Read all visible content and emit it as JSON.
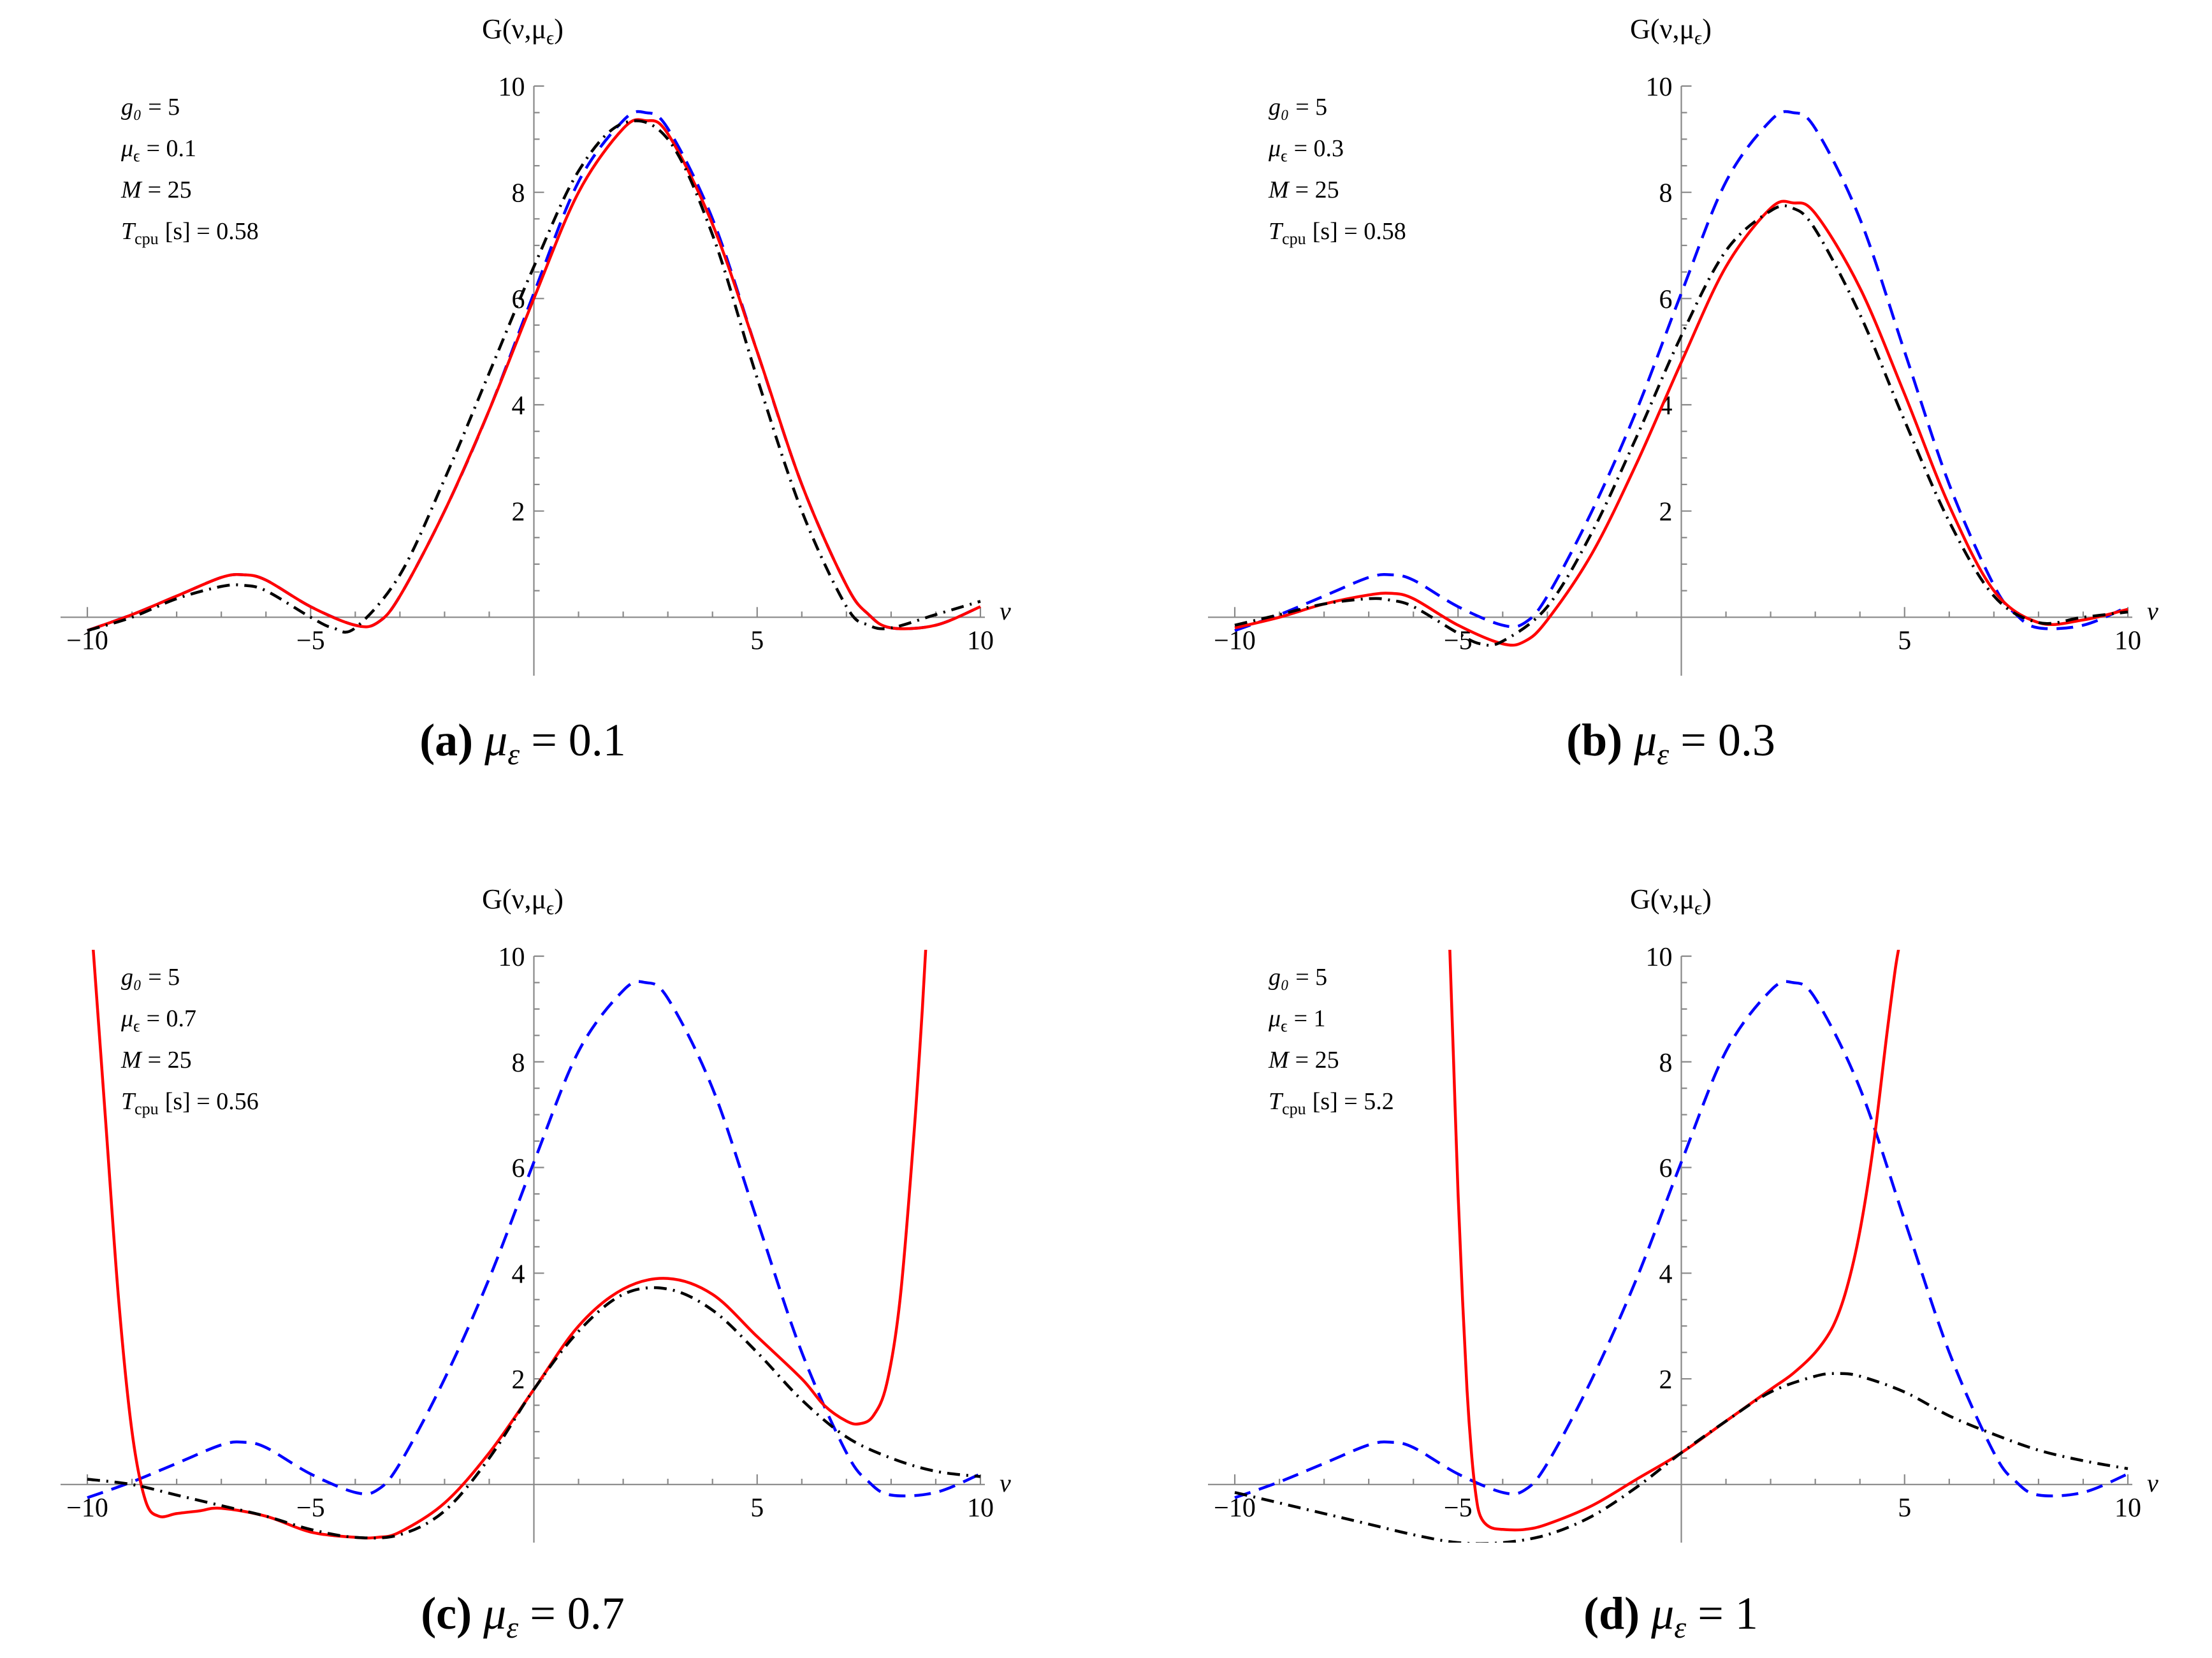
{
  "chart_data": [
    {
      "type": "line",
      "panel": "a",
      "caption_letter": "(a)",
      "caption_label": "μ",
      "caption_sub": "ε",
      "caption_value": "= 0.1",
      "ylabel": "G(ν,μ",
      "ylabel_sub": "ϵ",
      "ylabel_close": ")",
      "xlabel": "ν",
      "xlim": [
        -10.6,
        10.1
      ],
      "ylim": [
        -1.1,
        10
      ],
      "xticks": [
        -10,
        -5,
        5,
        10
      ],
      "xtick_labels": [
        "−10",
        "−5",
        "5",
        "10"
      ],
      "yticks": [
        2,
        4,
        6,
        8,
        10
      ],
      "ytick_labels": [
        "2",
        "4",
        "6",
        "8",
        "10"
      ],
      "annotations": [
        {
          "name": "g₀",
          "text": "= 5"
        },
        {
          "name": "μ",
          "sub": "ϵ",
          "text": "= 0.1"
        },
        {
          "name": "M",
          "text": "= 25"
        },
        {
          "name": "T",
          "sub": "cpu",
          "text": "[s] = 0.58"
        }
      ],
      "series": [
        {
          "name": "dashed",
          "color": "#0000ff",
          "style": "dashed",
          "x": [
            -10,
            -9,
            -8,
            -7,
            -6.5,
            -6,
            -5,
            -4,
            -3.5,
            -3,
            -2,
            -1,
            0,
            1,
            2,
            2.5,
            3,
            4,
            5,
            6,
            7,
            7.5,
            8,
            9,
            10
          ],
          "y": [
            -0.25,
            0.05,
            0.4,
            0.75,
            0.8,
            0.7,
            0.2,
            -0.15,
            -0.1,
            0.4,
            2.0,
            3.9,
            6.1,
            8.2,
            9.35,
            9.5,
            9.2,
            7.5,
            5.0,
            2.5,
            0.6,
            0.05,
            -0.2,
            -0.15,
            0.2
          ]
        },
        {
          "name": "solid",
          "color": "#ff0000",
          "style": "solid",
          "x": [
            -10,
            -9,
            -8,
            -7,
            -6.5,
            -6,
            -5,
            -4,
            -3.5,
            -3,
            -2,
            -1,
            0,
            1,
            2,
            2.5,
            3,
            4,
            5,
            6,
            7,
            7.5,
            8,
            9,
            10
          ],
          "y": [
            -0.25,
            0.05,
            0.4,
            0.75,
            0.8,
            0.7,
            0.2,
            -0.15,
            -0.1,
            0.4,
            2.0,
            3.9,
            6.0,
            8.0,
            9.2,
            9.35,
            9.1,
            7.4,
            5.0,
            2.5,
            0.6,
            0.05,
            -0.2,
            -0.15,
            0.2
          ]
        },
        {
          "name": "dash-dot",
          "color": "#000000",
          "style": "dashdot",
          "x": [
            -10,
            -9,
            -8,
            -7,
            -6.5,
            -6,
            -5,
            -4.5,
            -4,
            -3,
            -2,
            -1,
            0,
            1,
            2,
            3,
            4,
            5,
            6,
            7,
            7.5,
            8,
            9,
            10
          ],
          "y": [
            -0.25,
            0.0,
            0.35,
            0.58,
            0.6,
            0.5,
            0.0,
            -0.2,
            -0.2,
            0.8,
            2.6,
            4.6,
            6.6,
            8.4,
            9.3,
            9.0,
            7.2,
            4.5,
            2.0,
            0.2,
            -0.15,
            -0.2,
            0.05,
            0.3
          ]
        }
      ]
    },
    {
      "type": "line",
      "panel": "b",
      "caption_letter": "(b)",
      "caption_label": "μ",
      "caption_sub": "ε",
      "caption_value": "= 0.3",
      "ylabel": "G(ν,μ",
      "ylabel_sub": "ϵ",
      "ylabel_close": ")",
      "xlabel": "ν",
      "xlim": [
        -10.6,
        10.1
      ],
      "ylim": [
        -1.1,
        10
      ],
      "xticks": [
        -10,
        -5,
        5,
        10
      ],
      "xtick_labels": [
        "−10",
        "−5",
        "5",
        "10"
      ],
      "yticks": [
        2,
        4,
        6,
        8,
        10
      ],
      "ytick_labels": [
        "2",
        "4",
        "6",
        "8",
        "10"
      ],
      "annotations": [
        {
          "name": "g₀",
          "text": "= 5"
        },
        {
          "name": "μ",
          "sub": "ϵ",
          "text": "= 0.3"
        },
        {
          "name": "M",
          "text": "= 25"
        },
        {
          "name": "T",
          "sub": "cpu",
          "text": "[s] = 0.58"
        }
      ],
      "series": [
        {
          "name": "dashed",
          "color": "#0000ff",
          "style": "dashed",
          "x": [
            -10,
            -9,
            -8,
            -7,
            -6.5,
            -6,
            -5,
            -4,
            -3.5,
            -3,
            -2,
            -1,
            0,
            1,
            2,
            2.5,
            3,
            4,
            5,
            6,
            7,
            7.5,
            8,
            9,
            10
          ],
          "y": [
            -0.25,
            0.05,
            0.4,
            0.75,
            0.8,
            0.7,
            0.2,
            -0.15,
            -0.1,
            0.4,
            2.0,
            3.9,
            6.1,
            8.2,
            9.35,
            9.5,
            9.2,
            7.5,
            5.0,
            2.5,
            0.6,
            0.05,
            -0.2,
            -0.15,
            0.2
          ]
        },
        {
          "name": "solid",
          "color": "#ff0000",
          "style": "solid",
          "x": [
            -10,
            -9,
            -8,
            -7,
            -6.5,
            -6,
            -5,
            -4,
            -3.5,
            -3,
            -2,
            -1,
            0,
            1,
            2,
            2.5,
            3,
            4,
            5,
            6,
            7,
            8,
            9,
            10
          ],
          "y": [
            -0.2,
            0.0,
            0.25,
            0.42,
            0.45,
            0.35,
            -0.15,
            -0.5,
            -0.45,
            -0.05,
            1.2,
            2.9,
            4.8,
            6.6,
            7.7,
            7.8,
            7.6,
            6.2,
            4.2,
            2.1,
            0.5,
            -0.1,
            -0.05,
            0.15
          ]
        },
        {
          "name": "dash-dot",
          "color": "#000000",
          "style": "dashdot",
          "x": [
            -10,
            -9,
            -8,
            -7,
            -6.5,
            -6,
            -5,
            -4.5,
            -4,
            -3,
            -2,
            -1,
            0,
            1,
            2,
            2.5,
            3,
            4,
            5,
            6,
            7,
            8,
            9,
            10
          ],
          "y": [
            -0.15,
            0.05,
            0.25,
            0.35,
            0.32,
            0.2,
            -0.3,
            -0.5,
            -0.45,
            0.2,
            1.6,
            3.4,
            5.3,
            6.9,
            7.65,
            7.7,
            7.3,
            5.7,
            3.7,
            1.8,
            0.4,
            -0.1,
            0.0,
            0.1
          ]
        }
      ]
    },
    {
      "type": "line",
      "panel": "c",
      "caption_letter": "(c)",
      "caption_label": "μ",
      "caption_sub": "ε",
      "caption_value": "= 0.7",
      "ylabel": "G(ν,μ",
      "ylabel_sub": "ϵ",
      "ylabel_close": ")",
      "xlabel": "ν",
      "xlim": [
        -10.6,
        10.1
      ],
      "ylim": [
        -1.1,
        10
      ],
      "xticks": [
        -10,
        -5,
        5,
        10
      ],
      "xtick_labels": [
        "−10",
        "−5",
        "5",
        "10"
      ],
      "yticks": [
        2,
        4,
        6,
        8,
        10
      ],
      "ytick_labels": [
        "2",
        "4",
        "6",
        "8",
        "10"
      ],
      "annotations": [
        {
          "name": "g₀",
          "text": "= 5"
        },
        {
          "name": "μ",
          "sub": "ϵ",
          "text": "= 0.7"
        },
        {
          "name": "M",
          "text": "= 25"
        },
        {
          "name": "T",
          "sub": "cpu",
          "text": "[s] = 0.56"
        }
      ],
      "series": [
        {
          "name": "dashed",
          "color": "#0000ff",
          "style": "dashed",
          "x": [
            -10,
            -9,
            -8,
            -7,
            -6.5,
            -6,
            -5,
            -4,
            -3.5,
            -3,
            -2,
            -1,
            0,
            1,
            2,
            2.5,
            3,
            4,
            5,
            6,
            7,
            7.5,
            8,
            9,
            10
          ],
          "y": [
            -0.25,
            0.05,
            0.4,
            0.75,
            0.8,
            0.7,
            0.2,
            -0.15,
            -0.1,
            0.4,
            2.0,
            3.9,
            6.1,
            8.2,
            9.35,
            9.5,
            9.2,
            7.5,
            5.0,
            2.5,
            0.6,
            0.05,
            -0.2,
            -0.15,
            0.2
          ]
        },
        {
          "name": "solid",
          "color": "#ff0000",
          "style": "solid",
          "x": [
            -9.9,
            -9.6,
            -9.3,
            -9.0,
            -8.7,
            -8.4,
            -8,
            -7.5,
            -7,
            -6,
            -5,
            -4,
            -3.5,
            -3,
            -2,
            -1,
            0,
            1,
            2,
            3,
            4,
            5,
            6,
            6.5,
            7,
            7.3,
            7.6,
            7.9,
            8.2,
            8.5,
            8.7,
            8.8
          ],
          "y": [
            10.5,
            7.0,
            3.5,
            1.0,
            -0.3,
            -0.6,
            -0.55,
            -0.5,
            -0.45,
            -0.6,
            -0.9,
            -1.0,
            -1.0,
            -0.9,
            -0.35,
            0.6,
            1.8,
            3.0,
            3.7,
            3.9,
            3.6,
            2.8,
            2.0,
            1.5,
            1.2,
            1.15,
            1.3,
            1.9,
            3.5,
            6.5,
            9.0,
            10.5
          ]
        },
        {
          "name": "dash-dot",
          "color": "#000000",
          "style": "dashdot",
          "x": [
            -10,
            -9,
            -8,
            -7,
            -6,
            -5,
            -4,
            -3,
            -2,
            -1,
            0,
            1,
            2,
            3,
            4,
            5,
            6,
            7,
            8,
            9,
            10
          ],
          "y": [
            0.1,
            0.0,
            -0.2,
            -0.4,
            -0.6,
            -0.85,
            -1.0,
            -0.95,
            -0.5,
            0.5,
            1.8,
            2.9,
            3.6,
            3.7,
            3.3,
            2.5,
            1.6,
            0.9,
            0.5,
            0.25,
            0.15
          ]
        }
      ]
    },
    {
      "type": "line",
      "panel": "d",
      "caption_letter": "(d)",
      "caption_label": "μ",
      "caption_sub": "ε",
      "caption_value": "= 1",
      "ylabel": "G(ν,μ",
      "ylabel_sub": "ϵ",
      "ylabel_close": ")",
      "xlabel": "ν",
      "xlim": [
        -10.6,
        10.1
      ],
      "ylim": [
        -1.1,
        10
      ],
      "xticks": [
        -10,
        -5,
        5,
        10
      ],
      "xtick_labels": [
        "−10",
        "−5",
        "5",
        "10"
      ],
      "yticks": [
        2,
        4,
        6,
        8,
        10
      ],
      "ytick_labels": [
        "2",
        "4",
        "6",
        "8",
        "10"
      ],
      "annotations": [
        {
          "name": "g₀",
          "text": "= 5"
        },
        {
          "name": "μ",
          "sub": "ϵ",
          "text": "= 1"
        },
        {
          "name": "M",
          "text": "= 25"
        },
        {
          "name": "T",
          "sub": "cpu",
          "text": "[s] = 5.2"
        }
      ],
      "series": [
        {
          "name": "dashed",
          "color": "#0000ff",
          "style": "dashed",
          "x": [
            -10,
            -9,
            -8,
            -7,
            -6.5,
            -6,
            -5,
            -4,
            -3.5,
            -3,
            -2,
            -1,
            0,
            1,
            2,
            2.5,
            3,
            4,
            5,
            6,
            7,
            7.5,
            8,
            9,
            10
          ],
          "y": [
            -0.25,
            0.05,
            0.4,
            0.75,
            0.8,
            0.7,
            0.2,
            -0.15,
            -0.1,
            0.4,
            2.0,
            3.9,
            6.1,
            8.2,
            9.35,
            9.5,
            9.2,
            7.5,
            5.0,
            2.5,
            0.6,
            0.05,
            -0.2,
            -0.15,
            0.2
          ]
        },
        {
          "name": "solid",
          "color": "#ff0000",
          "style": "solid",
          "x": [
            -5.2,
            -5.1,
            -5.0,
            -4.9,
            -4.8,
            -4.7,
            -4.6,
            -4.5,
            -4.3,
            -4,
            -3.5,
            -3,
            -2,
            -1,
            0,
            1,
            2,
            2.5,
            3,
            3.4,
            3.7,
            4.0,
            4.3,
            4.6,
            4.8,
            4.95
          ],
          "y": [
            10.5,
            8.0,
            5.5,
            3.5,
            1.8,
            0.6,
            -0.2,
            -0.6,
            -0.8,
            -0.85,
            -0.85,
            -0.75,
            -0.4,
            0.1,
            0.6,
            1.2,
            1.8,
            2.1,
            2.5,
            3.0,
            3.7,
            4.8,
            6.4,
            8.5,
            9.8,
            10.5
          ]
        },
        {
          "name": "dash-dot",
          "color": "#000000",
          "style": "dashdot",
          "x": [
            -10,
            -9,
            -8,
            -7,
            -6,
            -5,
            -4,
            -3,
            -2,
            -1,
            0,
            1,
            2,
            3,
            3.5,
            4,
            5,
            6,
            7,
            8,
            9,
            10
          ],
          "y": [
            -0.15,
            -0.35,
            -0.55,
            -0.75,
            -0.95,
            -1.1,
            -1.1,
            -0.95,
            -0.6,
            -0.05,
            0.6,
            1.2,
            1.75,
            2.05,
            2.1,
            2.05,
            1.75,
            1.3,
            0.95,
            0.65,
            0.45,
            0.3
          ]
        }
      ]
    }
  ]
}
